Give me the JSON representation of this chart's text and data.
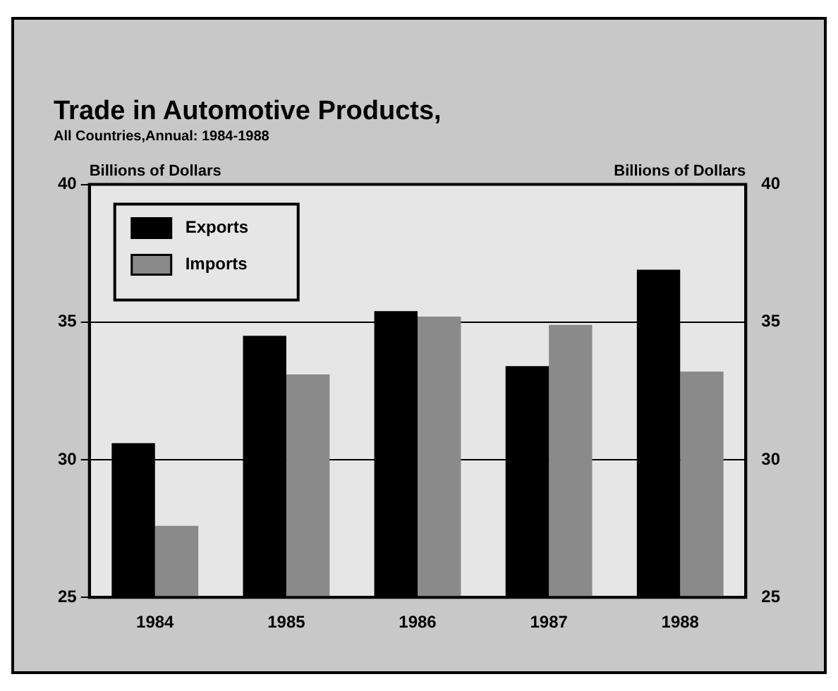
{
  "chart_data": {
    "type": "bar",
    "title": "Trade in Automotive Products,",
    "subtitle": "All Countries,Annual: 1984-1988",
    "ylabel": "Billions of Dollars",
    "y2label": "Billions of Dollars",
    "categories": [
      "1984",
      "1985",
      "1986",
      "1987",
      "1988"
    ],
    "series": [
      {
        "name": "Exports",
        "color": "#000000",
        "values": [
          30.6,
          34.5,
          35.4,
          33.4,
          36.9
        ]
      },
      {
        "name": "Imports",
        "color": "#8a8a8a",
        "values": [
          27.6,
          33.1,
          35.2,
          34.9,
          33.2
        ]
      }
    ],
    "ylim": [
      25,
      40
    ],
    "yticks": [
      25,
      30,
      35,
      40
    ],
    "y2lim": [
      25,
      40
    ],
    "y2ticks": [
      25,
      30,
      35,
      40
    ],
    "grid": "y",
    "legend": "top left"
  }
}
